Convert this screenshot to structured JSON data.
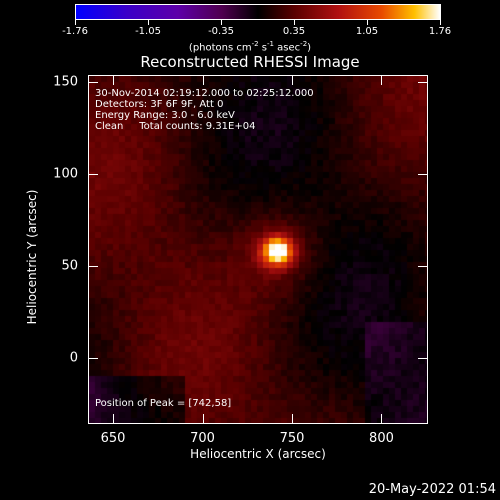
{
  "colorbar": {
    "tick_labels": [
      "-1.76",
      "-1.05",
      "-0.35",
      "0.35",
      "1.05",
      "1.76"
    ],
    "units": "(photons cm-2 s-1 asec-2)"
  },
  "chart_data": {
    "type": "heatmap",
    "title": "Reconstructed RHESSI Image",
    "xlabel": "Heliocentric X (arcsec)",
    "ylabel": "Heliocentric Y (arcsec)",
    "xlim": [
      636,
      826
    ],
    "ylim": [
      -36,
      154
    ],
    "x_ticks": [
      650,
      700,
      750,
      800
    ],
    "y_ticks": [
      0,
      50,
      100,
      150
    ],
    "colorbar_range": [
      -1.76,
      1.76
    ],
    "peak": {
      "x": 742,
      "y": 58
    },
    "colormap": "blue-purple-black-red-yellow-white",
    "info_lines": [
      "30-Nov-2014 02:19:12.000 to 02:25:12.000",
      "Detectors: 3F 6F 9F, Att 0",
      "Energy Range: 3.0 - 6.0 keV",
      "Clean     Total counts: 9.31E+04"
    ],
    "peak_label": "Position of Peak = [742,58]"
  },
  "timestamp": "20-May-2022 01:54"
}
